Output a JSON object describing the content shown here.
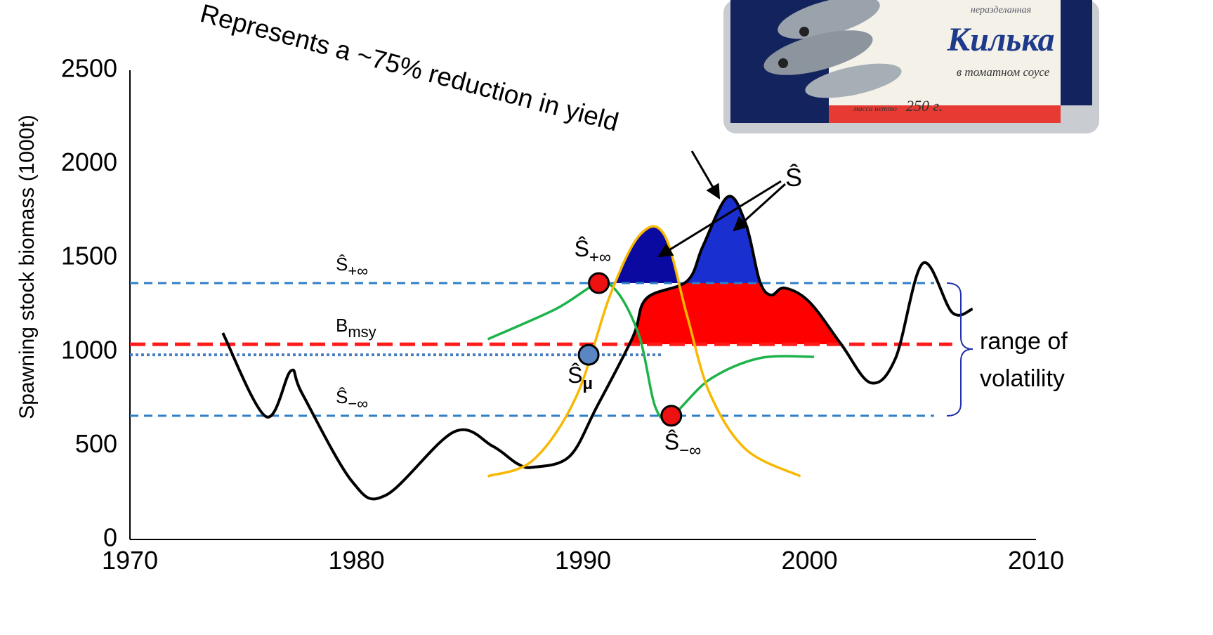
{
  "chart_data": {
    "type": "line",
    "ylabel": "Spawning stock biomass (1000t)",
    "xlim": [
      1970,
      2010
    ],
    "ylim": [
      0,
      2500
    ],
    "xticks": [
      1970,
      1980,
      1990,
      2000,
      2010
    ],
    "yticks": [
      0,
      500,
      1000,
      1500,
      2000,
      2500
    ],
    "series": [
      {
        "color": "#000000",
        "x": [
          1974.1,
          1976.0,
          1977.1,
          1977.6,
          1979.8,
          1981.3,
          1984.3,
          1986.0,
          1987.1,
          1987.8,
          1989.4,
          1990.6,
          1992.2,
          1992.8,
          1994.6,
          1995.3,
          1996.4,
          1997.2,
          1997.8,
          1998.3,
          1998.9,
          2000.0,
          2001.4,
          2002.7,
          2003.8,
          2005.0,
          2006.3,
          2007.2
        ],
        "values": [
          1100,
          655,
          898,
          778,
          310,
          236,
          573,
          498,
          404,
          385,
          442,
          704,
          1078,
          1284,
          1377,
          1564,
          1826,
          1677,
          1377,
          1302,
          1340,
          1265,
          1040,
          835,
          966,
          1471,
          1209,
          1228
        ]
      },
      {
        "color": "#1db34a",
        "x": [
          1985.8,
          1988.8,
          1990.6,
          1991.5,
          1992.5,
          1993.2,
          1993.9,
          1995.6,
          1997.8,
          2000.2
        ],
        "values": [
          1067,
          1228,
          1359,
          1321,
          1078,
          704,
          659,
          853,
          966,
          973
        ]
      },
      {
        "color": "#f8b800",
        "x": [
          1985.8,
          1987.8,
          1989.7,
          1991.2,
          1992.5,
          1993.6,
          1994.6,
          1995.6,
          1997.2,
          1999.6
        ],
        "values": [
          337,
          423,
          760,
          1302,
          1621,
          1621,
          1190,
          778,
          479,
          337
        ]
      }
    ],
    "reference_lines": [
      {
        "value": 1366,
        "to": 2005.5,
        "color": "#2f7fc8",
        "style": "dashed",
        "label": {
          "base": "Ŝ",
          "sub": "+∞"
        }
      },
      {
        "value": 1040,
        "to": 2006.3,
        "color": "#ff1a1a",
        "style": "bold-dashed",
        "label": {
          "base": "B",
          "sub": "msy"
        }
      },
      {
        "value": 984,
        "to": 1993.5,
        "color": "#4a7fbf",
        "style": "dotted"
      },
      {
        "value": 659,
        "to": 2005.5,
        "color": "#2f7fc8",
        "style": "dashed",
        "label": {
          "base": "Ŝ",
          "sub": "−∞"
        }
      }
    ],
    "fills": [
      {
        "series": 0,
        "lower_line": 1,
        "upper_line": 0,
        "xrange": [
          1991.5,
          2001.6
        ],
        "color": "#ff0000"
      },
      {
        "series": 0,
        "lower_line": 0,
        "xrange": [
          1994.3,
          1998.2
        ],
        "color": "#1a2fd0"
      },
      {
        "series": 2,
        "lower_line": 0,
        "xrange": [
          1991,
          1994.5
        ],
        "color": "#0a0aa0"
      }
    ],
    "points": [
      {
        "x": 1990.7,
        "value": 1366,
        "color": "#ee1111",
        "label": {
          "base": "Ŝ",
          "sub": "+∞"
        }
      },
      {
        "x": 1990.25,
        "value": 984,
        "color": "#5b86c4",
        "label": {
          "base": "Ŝ",
          "sub": "μ"
        }
      },
      {
        "x": 1993.9,
        "value": 659,
        "color": "#ee1111",
        "label": {
          "base": "Ŝ",
          "sub": "−∞"
        }
      }
    ],
    "annotations": {
      "reduction": "Represents a ~75% reduction in yield",
      "peaks": "Ŝ",
      "range": [
        "range of",
        "volatility"
      ]
    }
  },
  "image": {
    "subtitle": "неразделанная",
    "brand": "Килька",
    "sauce": "в томатном соусе",
    "weight_label": "масса нетто",
    "weight": "250 г."
  }
}
